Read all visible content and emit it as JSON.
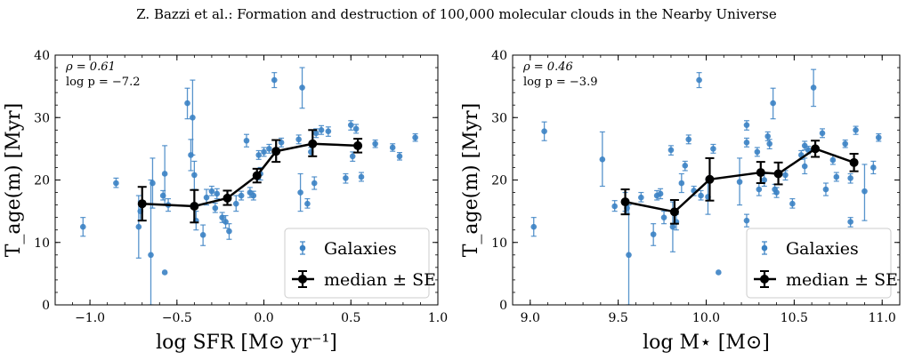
{
  "header": {
    "title": "Z. Bazzi et al.: Formation and destruction of 100,000 molecular clouds in the Nearby Universe"
  },
  "style": {
    "galaxy_color": "#3b82c4",
    "median_color": "#000000",
    "axes_color": "#000000"
  },
  "chart_data": [
    {
      "type": "scatter",
      "annotation_rho": "ρ = 0.61",
      "annotation_p": "log p = −7.2",
      "xlabel": "log SFR [M⊙ yr⁻¹]",
      "ylabel": "T_age(m) [Myr]",
      "xlim": [
        -1.2,
        1.0
      ],
      "ylim": [
        0,
        40
      ],
      "xticks": [
        -1.0,
        -0.5,
        0.0,
        0.5,
        1.0
      ],
      "xtick_labels": [
        "−1.0",
        "−0.5",
        "0.0",
        "0.5",
        "1.0"
      ],
      "yticks": [
        0,
        10,
        20,
        30,
        40
      ],
      "ytick_labels": [
        "0",
        "10",
        "20",
        "30",
        "40"
      ],
      "legend": {
        "position": "lower-right",
        "entries": [
          "Galaxies",
          "median ± SE"
        ]
      },
      "series": [
        {
          "name": "Galaxies",
          "kind": "points_with_errorbars",
          "points": [
            {
              "x": -1.04,
              "y": 12.5,
              "lo": 11.0,
              "hi": 14.0
            },
            {
              "x": -0.85,
              "y": 19.5,
              "lo": 18.8,
              "hi": 20.3
            },
            {
              "x": -0.72,
              "y": 12.5,
              "lo": 7.5,
              "hi": 17.5
            },
            {
              "x": -0.71,
              "y": 15.0,
              "lo": 13.5,
              "hi": 16.5
            },
            {
              "x": -0.65,
              "y": 8.0,
              "lo": 0.0,
              "hi": 20.0
            },
            {
              "x": -0.64,
              "y": 19.5,
              "lo": 15.5,
              "hi": 23.5
            },
            {
              "x": -0.57,
              "y": 5.2,
              "lo": 5.2,
              "hi": 5.2
            },
            {
              "x": -0.57,
              "y": 21.0,
              "lo": 16.0,
              "hi": 25.5
            },
            {
              "x": -0.55,
              "y": 16.0,
              "lo": 15.0,
              "hi": 17.0
            },
            {
              "x": -0.58,
              "y": 17.5,
              "lo": 16.8,
              "hi": 18.3
            },
            {
              "x": -0.44,
              "y": 32.3,
              "lo": 29.8,
              "hi": 34.7
            },
            {
              "x": -0.42,
              "y": 24.0,
              "lo": 21.5,
              "hi": 26.5
            },
            {
              "x": -0.4,
              "y": 20.8,
              "lo": 18.5,
              "hi": 23.0
            },
            {
              "x": -0.41,
              "y": 30.0,
              "lo": 24.0,
              "hi": 36.0
            },
            {
              "x": -0.39,
              "y": 13.5,
              "lo": 12.0,
              "hi": 15.0
            },
            {
              "x": -0.35,
              "y": 11.2,
              "lo": 9.5,
              "hi": 12.8
            },
            {
              "x": -0.33,
              "y": 17.2,
              "lo": 16.0,
              "hi": 18.5
            },
            {
              "x": -0.3,
              "y": 18.2,
              "lo": 17.5,
              "hi": 19.0
            },
            {
              "x": -0.28,
              "y": 15.5,
              "lo": 14.8,
              "hi": 16.3
            },
            {
              "x": -0.27,
              "y": 17.8,
              "lo": 17.0,
              "hi": 18.6
            },
            {
              "x": -0.24,
              "y": 14.0,
              "lo": 13.2,
              "hi": 14.8
            },
            {
              "x": -0.22,
              "y": 13.3,
              "lo": 12.3,
              "hi": 14.3
            },
            {
              "x": -0.2,
              "y": 11.8,
              "lo": 10.5,
              "hi": 13.0
            },
            {
              "x": -0.16,
              "y": 16.2,
              "lo": 15.0,
              "hi": 17.5
            },
            {
              "x": -0.13,
              "y": 17.5,
              "lo": 16.8,
              "hi": 18.2
            },
            {
              "x": -0.1,
              "y": 26.3,
              "lo": 25.3,
              "hi": 27.3
            },
            {
              "x": -0.08,
              "y": 18.0,
              "lo": 17.2,
              "hi": 18.8
            },
            {
              "x": -0.06,
              "y": 17.5,
              "lo": 16.8,
              "hi": 18.2
            },
            {
              "x": -0.03,
              "y": 24.0,
              "lo": 23.3,
              "hi": 24.7
            },
            {
              "x": -0.02,
              "y": 21.0,
              "lo": 20.0,
              "hi": 22.0
            },
            {
              "x": 0.0,
              "y": 24.5,
              "lo": 23.8,
              "hi": 25.2
            },
            {
              "x": 0.03,
              "y": 25.0,
              "lo": 24.3,
              "hi": 25.7
            },
            {
              "x": 0.06,
              "y": 36.0,
              "lo": 34.8,
              "hi": 37.2
            },
            {
              "x": 0.1,
              "y": 26.0,
              "lo": 25.3,
              "hi": 26.7
            },
            {
              "x": 0.2,
              "y": 26.5,
              "lo": 25.8,
              "hi": 27.2
            },
            {
              "x": 0.21,
              "y": 18.0,
              "lo": 15.0,
              "hi": 21.0
            },
            {
              "x": 0.22,
              "y": 34.8,
              "lo": 31.5,
              "hi": 38.0
            },
            {
              "x": 0.25,
              "y": 16.2,
              "lo": 15.5,
              "hi": 17.0
            },
            {
              "x": 0.27,
              "y": 24.5,
              "lo": 23.8,
              "hi": 25.2
            },
            {
              "x": 0.29,
              "y": 19.5,
              "lo": 18.5,
              "hi": 20.5
            },
            {
              "x": 0.3,
              "y": 27.5,
              "lo": 26.8,
              "hi": 28.2
            },
            {
              "x": 0.33,
              "y": 28.0,
              "lo": 27.3,
              "hi": 28.7
            },
            {
              "x": 0.37,
              "y": 27.8,
              "lo": 27.0,
              "hi": 28.5
            },
            {
              "x": 0.47,
              "y": 20.3,
              "lo": 19.5,
              "hi": 21.0
            },
            {
              "x": 0.5,
              "y": 28.8,
              "lo": 28.0,
              "hi": 29.5
            },
            {
              "x": 0.53,
              "y": 28.2,
              "lo": 27.5,
              "hi": 28.9
            },
            {
              "x": 0.51,
              "y": 23.8,
              "lo": 23.0,
              "hi": 24.5
            },
            {
              "x": 0.56,
              "y": 20.5,
              "lo": 19.8,
              "hi": 21.2
            },
            {
              "x": 0.64,
              "y": 25.8,
              "lo": 25.2,
              "hi": 26.4
            },
            {
              "x": 0.74,
              "y": 25.2,
              "lo": 24.6,
              "hi": 25.8
            },
            {
              "x": 0.78,
              "y": 23.8,
              "lo": 23.2,
              "hi": 24.4
            },
            {
              "x": 0.87,
              "y": 26.8,
              "lo": 26.2,
              "hi": 27.4
            }
          ]
        },
        {
          "name": "median ± SE",
          "kind": "line_with_errorbars",
          "points": [
            {
              "x": -0.7,
              "y": 16.2,
              "lo": 13.5,
              "hi": 18.9
            },
            {
              "x": -0.4,
              "y": 15.8,
              "lo": 13.2,
              "hi": 18.4
            },
            {
              "x": -0.21,
              "y": 17.1,
              "lo": 16.0,
              "hi": 18.3
            },
            {
              "x": -0.04,
              "y": 20.7,
              "lo": 19.6,
              "hi": 21.8
            },
            {
              "x": 0.07,
              "y": 24.6,
              "lo": 22.9,
              "hi": 26.4
            },
            {
              "x": 0.28,
              "y": 25.8,
              "lo": 23.8,
              "hi": 28.0
            },
            {
              "x": 0.54,
              "y": 25.5,
              "lo": 24.4,
              "hi": 26.6
            }
          ]
        }
      ]
    },
    {
      "type": "scatter",
      "annotation_rho": "ρ = 0.46",
      "annotation_p": "log p = −3.9",
      "xlabel": "log M⋆ [M⊙]",
      "ylabel": "T_age(m) [Myr]",
      "xlim": [
        8.9,
        11.1
      ],
      "ylim": [
        0,
        40
      ],
      "xticks": [
        9.0,
        9.5,
        10.0,
        10.5,
        11.0
      ],
      "xtick_labels": [
        "9.0",
        "9.5",
        "10.0",
        "10.5",
        "11.0"
      ],
      "yticks": [
        0,
        10,
        20,
        30,
        40
      ],
      "ytick_labels": [
        "0",
        "10",
        "20",
        "30",
        "40"
      ],
      "legend": {
        "position": "lower-right",
        "entries": [
          "Galaxies",
          "median ± SE"
        ]
      },
      "series": [
        {
          "name": "Galaxies",
          "kind": "points_with_errorbars",
          "points": [
            {
              "x": 9.02,
              "y": 12.5,
              "lo": 11.0,
              "hi": 14.0
            },
            {
              "x": 9.08,
              "y": 27.8,
              "lo": 26.3,
              "hi": 29.3
            },
            {
              "x": 9.41,
              "y": 23.3,
              "lo": 19.0,
              "hi": 27.7
            },
            {
              "x": 9.48,
              "y": 15.8,
              "lo": 15.0,
              "hi": 16.7
            },
            {
              "x": 9.54,
              "y": 16.5,
              "lo": 15.0,
              "hi": 18.0
            },
            {
              "x": 9.56,
              "y": 8.0,
              "lo": 0.0,
              "hi": 16.0
            },
            {
              "x": 9.55,
              "y": 15.5,
              "lo": 14.7,
              "hi": 16.3
            },
            {
              "x": 9.63,
              "y": 17.2,
              "lo": 16.5,
              "hi": 18.0
            },
            {
              "x": 9.7,
              "y": 11.3,
              "lo": 9.5,
              "hi": 13.0
            },
            {
              "x": 9.72,
              "y": 17.5,
              "lo": 16.8,
              "hi": 18.3
            },
            {
              "x": 9.74,
              "y": 17.8,
              "lo": 17.0,
              "hi": 18.6
            },
            {
              "x": 9.76,
              "y": 14.0,
              "lo": 13.0,
              "hi": 15.0
            },
            {
              "x": 9.8,
              "y": 24.8,
              "lo": 24.0,
              "hi": 25.5
            },
            {
              "x": 9.81,
              "y": 12.5,
              "lo": 8.5,
              "hi": 16.5
            },
            {
              "x": 9.83,
              "y": 13.3,
              "lo": 12.0,
              "hi": 14.5
            },
            {
              "x": 9.86,
              "y": 19.5,
              "lo": 18.0,
              "hi": 21.0
            },
            {
              "x": 9.88,
              "y": 22.3,
              "lo": 21.5,
              "hi": 23.0
            },
            {
              "x": 9.9,
              "y": 26.5,
              "lo": 25.8,
              "hi": 27.2
            },
            {
              "x": 9.93,
              "y": 18.3,
              "lo": 17.5,
              "hi": 19.0
            },
            {
              "x": 9.96,
              "y": 36.0,
              "lo": 34.8,
              "hi": 37.2
            },
            {
              "x": 9.97,
              "y": 17.5,
              "lo": 16.8,
              "hi": 18.3
            },
            {
              "x": 10.01,
              "y": 17.3,
              "lo": 14.5,
              "hi": 20.0
            },
            {
              "x": 10.04,
              "y": 25.0,
              "lo": 24.3,
              "hi": 25.7
            },
            {
              "x": 10.07,
              "y": 5.2,
              "lo": 5.2,
              "hi": 5.2
            },
            {
              "x": 10.19,
              "y": 19.7,
              "lo": 16.0,
              "hi": 23.5
            },
            {
              "x": 10.23,
              "y": 28.8,
              "lo": 28.0,
              "hi": 29.5
            },
            {
              "x": 10.23,
              "y": 26.0,
              "lo": 25.3,
              "hi": 26.7
            },
            {
              "x": 10.23,
              "y": 13.5,
              "lo": 12.5,
              "hi": 14.5
            },
            {
              "x": 10.29,
              "y": 24.5,
              "lo": 23.8,
              "hi": 25.2
            },
            {
              "x": 10.3,
              "y": 18.5,
              "lo": 17.5,
              "hi": 19.5
            },
            {
              "x": 10.33,
              "y": 20.0,
              "lo": 19.0,
              "hi": 21.0
            },
            {
              "x": 10.35,
              "y": 27.0,
              "lo": 26.3,
              "hi": 27.7
            },
            {
              "x": 10.36,
              "y": 25.8,
              "lo": 25.0,
              "hi": 26.5
            },
            {
              "x": 10.38,
              "y": 32.3,
              "lo": 29.8,
              "hi": 34.7
            },
            {
              "x": 10.39,
              "y": 18.5,
              "lo": 17.8,
              "hi": 19.3
            },
            {
              "x": 10.4,
              "y": 18.0,
              "lo": 17.2,
              "hi": 18.8
            },
            {
              "x": 10.45,
              "y": 20.8,
              "lo": 20.0,
              "hi": 21.5
            },
            {
              "x": 10.49,
              "y": 16.2,
              "lo": 15.5,
              "hi": 17.0
            },
            {
              "x": 10.54,
              "y": 24.0,
              "lo": 23.3,
              "hi": 24.7
            },
            {
              "x": 10.56,
              "y": 25.5,
              "lo": 24.8,
              "hi": 26.2
            },
            {
              "x": 10.56,
              "y": 22.2,
              "lo": 21.0,
              "hi": 23.5
            },
            {
              "x": 10.58,
              "y": 24.8,
              "lo": 24.2,
              "hi": 25.4
            },
            {
              "x": 10.61,
              "y": 34.8,
              "lo": 31.8,
              "hi": 37.7
            },
            {
              "x": 10.66,
              "y": 27.5,
              "lo": 26.8,
              "hi": 28.2
            },
            {
              "x": 10.68,
              "y": 18.5,
              "lo": 17.5,
              "hi": 19.5
            },
            {
              "x": 10.72,
              "y": 23.2,
              "lo": 22.5,
              "hi": 24.0
            },
            {
              "x": 10.74,
              "y": 20.5,
              "lo": 19.8,
              "hi": 21.2
            },
            {
              "x": 10.79,
              "y": 25.8,
              "lo": 25.2,
              "hi": 26.4
            },
            {
              "x": 10.82,
              "y": 13.3,
              "lo": 12.5,
              "hi": 14.0
            },
            {
              "x": 10.82,
              "y": 20.3,
              "lo": 19.5,
              "hi": 21.0
            },
            {
              "x": 10.85,
              "y": 28.0,
              "lo": 27.3,
              "hi": 28.6
            },
            {
              "x": 10.9,
              "y": 18.2,
              "lo": 13.5,
              "hi": 22.5
            },
            {
              "x": 10.95,
              "y": 22.0,
              "lo": 21.0,
              "hi": 23.0
            },
            {
              "x": 10.98,
              "y": 26.8,
              "lo": 26.2,
              "hi": 27.4
            }
          ]
        },
        {
          "name": "median ± SE",
          "kind": "line_with_errorbars",
          "points": [
            {
              "x": 9.54,
              "y": 16.5,
              "lo": 14.5,
              "hi": 18.5
            },
            {
              "x": 9.82,
              "y": 14.9,
              "lo": 13.0,
              "hi": 16.8
            },
            {
              "x": 10.02,
              "y": 20.1,
              "lo": 16.7,
              "hi": 23.5
            },
            {
              "x": 10.31,
              "y": 21.2,
              "lo": 19.5,
              "hi": 22.9
            },
            {
              "x": 10.41,
              "y": 21.0,
              "lo": 19.3,
              "hi": 22.8
            },
            {
              "x": 10.62,
              "y": 25.0,
              "lo": 23.7,
              "hi": 26.3
            },
            {
              "x": 10.84,
              "y": 22.8,
              "lo": 21.4,
              "hi": 24.2
            }
          ]
        }
      ]
    }
  ]
}
